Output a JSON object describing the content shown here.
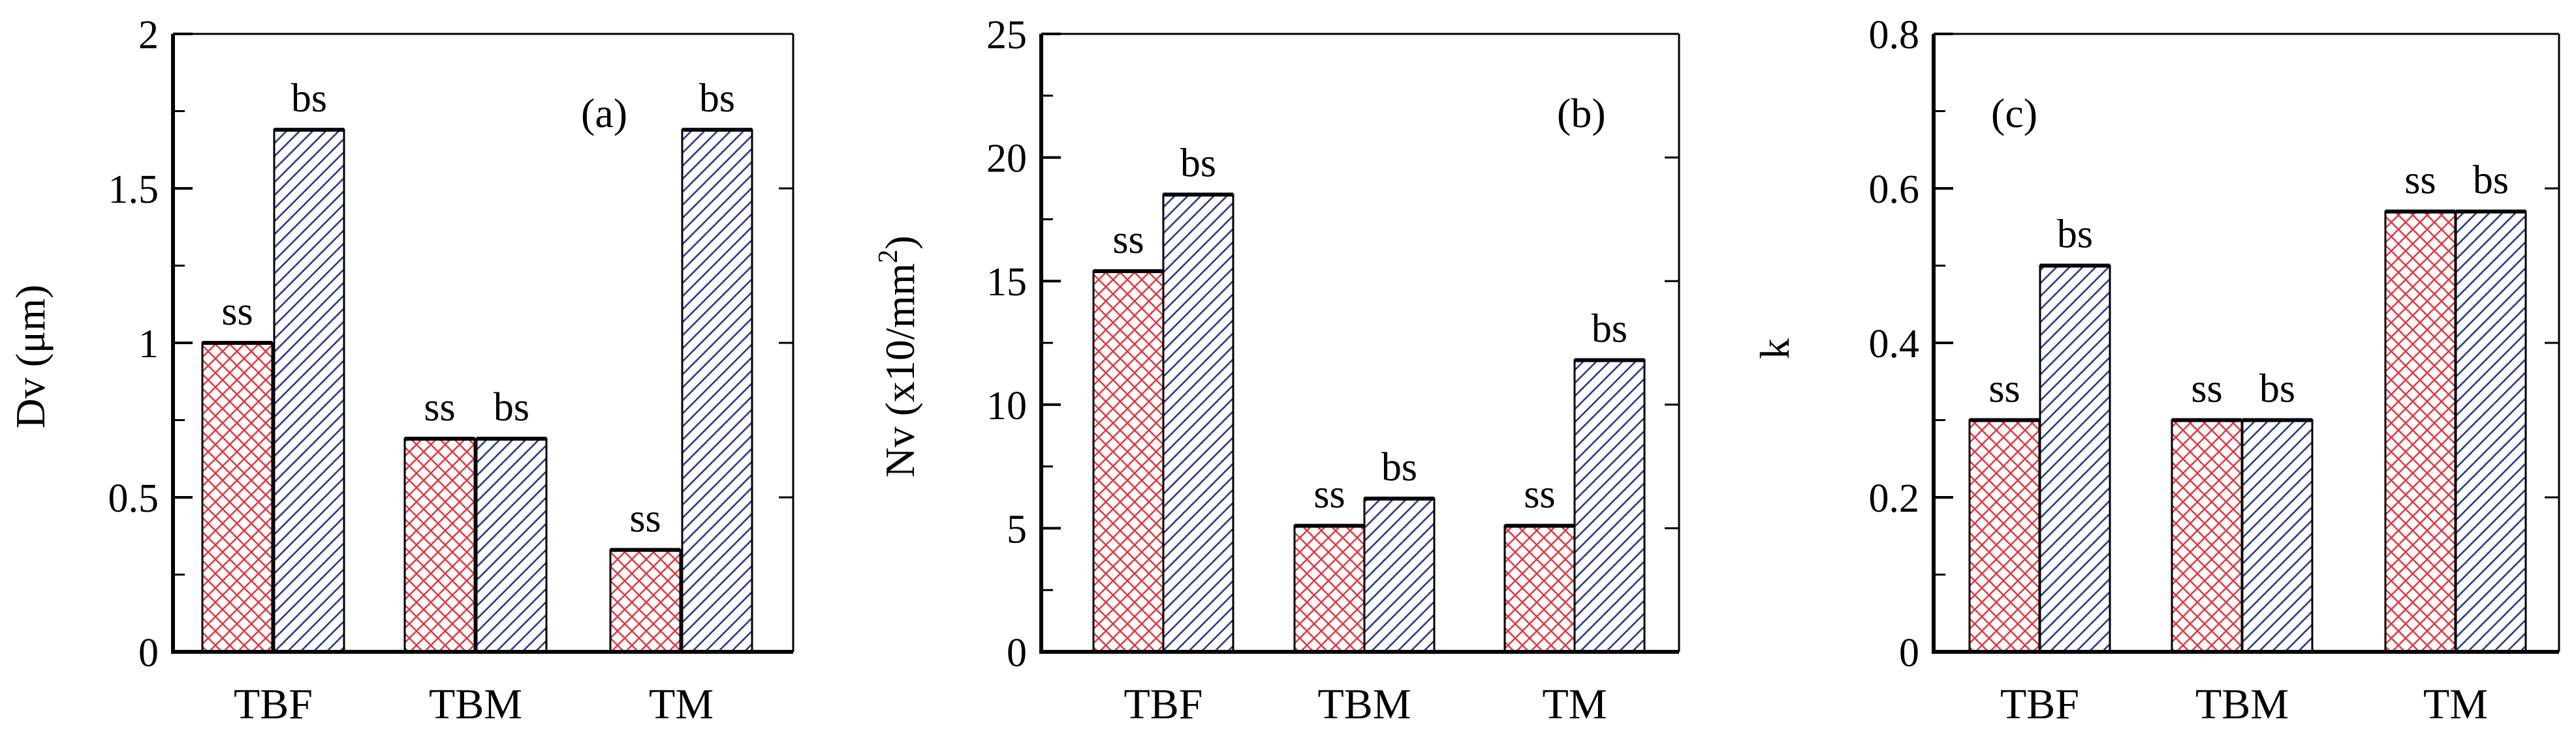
{
  "chart_data": [
    {
      "type": "bar",
      "panel_label": "(a)",
      "ylabel": "Dv (μm)",
      "ylabel_sup": "",
      "ylabel_tail": "",
      "categories": [
        "TBF",
        "TBM",
        "TM"
      ],
      "series": [
        {
          "name": "ss",
          "values": [
            1.0,
            0.69,
            0.33
          ]
        },
        {
          "name": "bs",
          "values": [
            1.69,
            0.69,
            1.69
          ]
        }
      ],
      "ylim": [
        0,
        2
      ],
      "yticks": [
        0,
        0.5,
        1,
        1.5,
        2
      ],
      "ytick_labels": [
        "0",
        "0.5",
        "1",
        "1.5",
        "2"
      ],
      "grid": false
    },
    {
      "type": "bar",
      "panel_label": "(b)",
      "ylabel": "Nv (x10/mm",
      "ylabel_sup": "2",
      "ylabel_tail": ")",
      "categories": [
        "TBF",
        "TBM",
        "TM"
      ],
      "series": [
        {
          "name": "ss",
          "values": [
            15.4,
            5.1,
            5.1
          ]
        },
        {
          "name": "bs",
          "values": [
            18.5,
            6.2,
            11.8
          ]
        }
      ],
      "ylim": [
        0,
        25
      ],
      "yticks": [
        0,
        5,
        10,
        15,
        20,
        25
      ],
      "ytick_labels": [
        "0",
        "5",
        "10",
        "15",
        "20",
        "25"
      ],
      "grid": false
    },
    {
      "type": "bar",
      "panel_label": "(c)",
      "ylabel": "k",
      "ylabel_sup": "",
      "ylabel_tail": "",
      "categories": [
        "TBF",
        "TBM",
        "TM"
      ],
      "series": [
        {
          "name": "ss",
          "values": [
            0.3,
            0.3,
            0.57
          ]
        },
        {
          "name": "bs",
          "values": [
            0.5,
            0.3,
            0.57
          ]
        }
      ],
      "ylim": [
        0,
        0.8
      ],
      "yticks": [
        0,
        0.2,
        0.4,
        0.6,
        0.8
      ],
      "ytick_labels": [
        "0",
        "0.2",
        "0.4",
        "0.6",
        "0.8"
      ],
      "grid": false
    }
  ],
  "colors": {
    "ss": "#e8323c",
    "bs": "#2b3a8f",
    "axis": "#000000"
  }
}
